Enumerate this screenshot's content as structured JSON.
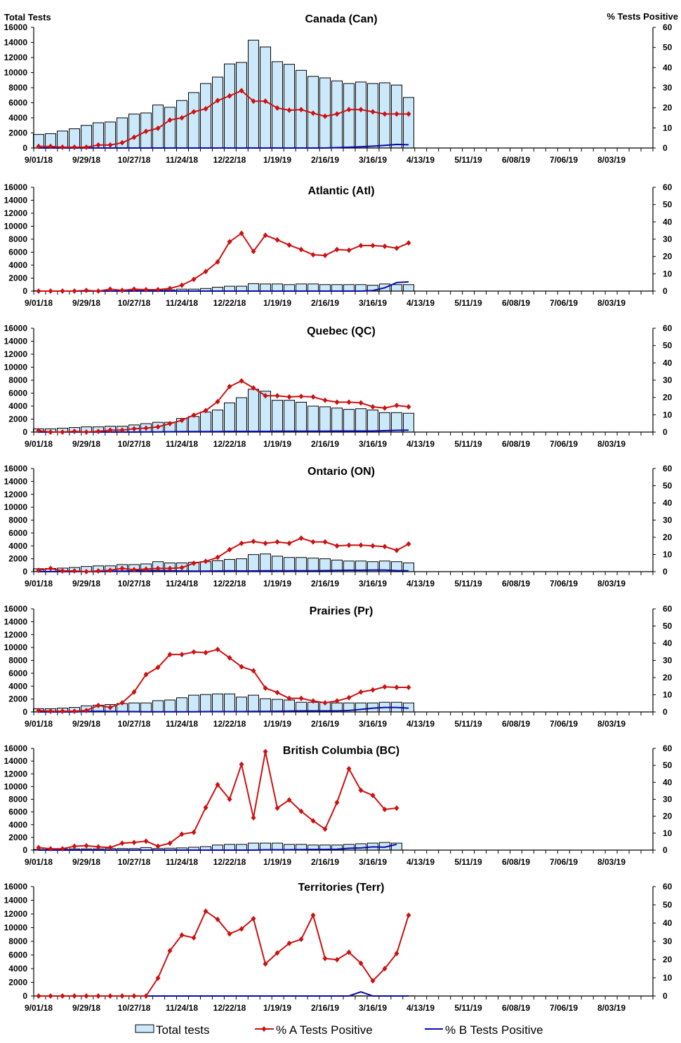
{
  "colors": {
    "bar_fill": "#cce9fb",
    "bar_stroke": "#000000",
    "series_a": "#cc1111",
    "series_b": "#0a0aa8"
  },
  "legend": {
    "position": "bottom",
    "items": [
      "Total tests",
      "% A Tests Positive",
      "% B Tests Positive"
    ]
  },
  "chart_data": [
    {
      "type": "bar+line",
      "title": "Canada (Can)",
      "ylabel": "Total Tests",
      "y2label": "% Tests Positive",
      "x_start": "9/01/18",
      "x_interval": "weekly",
      "xticks": [
        "9/01/18",
        "9/29/18",
        "10/27/18",
        "11/24/18",
        "12/22/18",
        "1/19/19",
        "2/16/19",
        "3/16/19",
        "4/13/19",
        "5/11/19",
        "6/08/19",
        "7/06/19",
        "8/03/19"
      ],
      "ylim": [
        0,
        16000
      ],
      "y2lim": [
        0,
        60
      ],
      "yticks": [
        0,
        2000,
        4000,
        6000,
        8000,
        10000,
        12000,
        14000,
        16000
      ],
      "y2ticks": [
        0,
        10,
        20,
        30,
        40,
        50,
        60
      ],
      "series": [
        {
          "name": "Total tests",
          "axis": "left",
          "type": "bar",
          "values": [
            1800,
            1900,
            2250,
            2550,
            3000,
            3350,
            3450,
            4000,
            4500,
            4650,
            5700,
            5400,
            6300,
            7350,
            8550,
            9400,
            11150,
            11350,
            14300,
            13400,
            11450,
            11100,
            10300,
            9500,
            9300,
            8900,
            8550,
            8750,
            8550,
            8650,
            8350,
            6700
          ]
        },
        {
          "name": "% A Tests Positive",
          "axis": "right",
          "type": "line",
          "values": [
            0.8,
            0.8,
            0.4,
            0.4,
            0.4,
            1.5,
            1.5,
            2.6,
            5.3,
            8.3,
            9.8,
            13.9,
            15,
            18,
            19.5,
            23.6,
            25.9,
            28.5,
            23.3,
            23.3,
            19.9,
            18.8,
            19.1,
            17.3,
            15.8,
            16.9,
            19.1,
            19.1,
            18,
            16.9,
            16.9,
            16.9
          ]
        },
        {
          "name": "% B Tests Positive",
          "axis": "right",
          "type": "line",
          "values": [
            0,
            0,
            0,
            0,
            0,
            0,
            0,
            0,
            0,
            0,
            0,
            0,
            0,
            0,
            0,
            0,
            0,
            0,
            0,
            0,
            0,
            0,
            0,
            0,
            0,
            0.2,
            0.4,
            0.6,
            0.9,
            1.3,
            1.8,
            1.6
          ]
        }
      ]
    },
    {
      "type": "bar+line",
      "title": "Atlantic (Atl)",
      "ylim": [
        0,
        16000
      ],
      "y2lim": [
        0,
        60
      ],
      "series": [
        {
          "name": "Total tests",
          "axis": "left",
          "type": "bar",
          "values": [
            50,
            50,
            50,
            50,
            50,
            50,
            50,
            80,
            100,
            100,
            150,
            200,
            300,
            300,
            400,
            600,
            750,
            750,
            1150,
            1100,
            1100,
            1000,
            1100,
            1100,
            1000,
            1000,
            1000,
            1000,
            900,
            1100,
            1000,
            1000
          ]
        },
        {
          "name": "% A Tests Positive",
          "axis": "right",
          "type": "line",
          "values": [
            0,
            0,
            0,
            0,
            0.4,
            0,
            1.1,
            0.4,
            1.1,
            0.8,
            0.8,
            1.5,
            3.4,
            6.8,
            11.3,
            16.9,
            28.5,
            33.4,
            22.9,
            32.3,
            29.6,
            26.6,
            24,
            21,
            20.6,
            24,
            23.6,
            26.3,
            26.3,
            25.9,
            24.8,
            27.8
          ]
        },
        {
          "name": "% B Tests Positive",
          "axis": "right",
          "type": "line",
          "values": [
            0,
            0,
            0,
            0,
            0,
            0,
            0,
            0,
            0,
            0,
            0,
            0,
            0,
            0,
            0,
            0,
            0,
            0,
            0,
            0,
            0,
            0,
            0,
            0,
            0,
            0,
            0,
            0,
            0.3,
            1.9,
            4.9,
            5.3
          ]
        }
      ]
    },
    {
      "type": "bar+line",
      "title": "Quebec (QC)",
      "ylim": [
        0,
        16000
      ],
      "y2lim": [
        0,
        60
      ],
      "series": [
        {
          "name": "Total tests",
          "axis": "left",
          "type": "bar",
          "values": [
            500,
            500,
            600,
            700,
            800,
            800,
            900,
            900,
            1100,
            1300,
            1500,
            1500,
            2100,
            2400,
            3100,
            3400,
            4500,
            5300,
            6600,
            6300,
            4900,
            4900,
            4600,
            4000,
            3900,
            3700,
            3500,
            3600,
            3400,
            3000,
            3000,
            2900
          ]
        },
        {
          "name": "% A Tests Positive",
          "axis": "right",
          "type": "line",
          "values": [
            0.8,
            0,
            0,
            0.4,
            0,
            0.4,
            1.1,
            1.1,
            1.9,
            2.3,
            3,
            4.9,
            6.8,
            9.8,
            12.4,
            17.6,
            26.3,
            29.6,
            25.5,
            21,
            21,
            20.3,
            20.6,
            20.3,
            18.4,
            17.3,
            17.3,
            16.9,
            14.6,
            13.9,
            15.4,
            14.6
          ]
        },
        {
          "name": "% B Tests Positive",
          "axis": "right",
          "type": "line",
          "values": [
            0,
            0,
            0,
            0,
            0,
            0,
            0,
            0,
            0,
            0.1,
            0.1,
            0.2,
            0.3,
            0.3,
            0.3,
            0.3,
            0.4,
            0.4,
            0.4,
            0.4,
            0.5,
            0.5,
            0.5,
            0.5,
            0.5,
            0.6,
            0.6,
            0.6,
            0.6,
            0.8,
            1,
            1.1
          ]
        }
      ]
    },
    {
      "type": "bar+line",
      "title": "Ontario (ON)",
      "ylim": [
        0,
        16000
      ],
      "y2lim": [
        0,
        60
      ],
      "series": [
        {
          "name": "Total tests",
          "axis": "left",
          "type": "bar",
          "values": [
            450,
            500,
            550,
            650,
            800,
            900,
            900,
            1100,
            1100,
            1200,
            1550,
            1350,
            1350,
            1450,
            1550,
            1700,
            1900,
            2000,
            2650,
            2750,
            2400,
            2200,
            2200,
            2100,
            2000,
            1800,
            1650,
            1650,
            1550,
            1650,
            1550,
            1350
          ]
        },
        {
          "name": "% A Tests Positive",
          "axis": "right",
          "type": "line",
          "values": [
            0.8,
            1.9,
            0.4,
            0.4,
            0,
            0.4,
            0.8,
            1.9,
            1.1,
            1.5,
            1.9,
            1.9,
            2.3,
            4.9,
            6,
            8.3,
            12.8,
            16.5,
            17.6,
            16.5,
            17.3,
            16.5,
            19.5,
            17.3,
            17.3,
            15,
            15.4,
            15.4,
            15,
            14.6,
            12.4,
            16.1
          ]
        },
        {
          "name": "% B Tests Positive",
          "axis": "right",
          "type": "line",
          "values": [
            0,
            0,
            0,
            0,
            0,
            0,
            0.2,
            0.3,
            0.4,
            0.5,
            0.6,
            0.5,
            0.4,
            0.3,
            0.3,
            0.4,
            0.5,
            0.4,
            0.4,
            0.5,
            0.5,
            0.5,
            0.5,
            0.5,
            0.6,
            0.7,
            0.8,
            0.8,
            0.9,
            0.9,
            0.6,
            0.5
          ]
        }
      ]
    },
    {
      "type": "bar+line",
      "title": "Prairies (Pr)",
      "ylim": [
        0,
        16000
      ],
      "y2lim": [
        0,
        60
      ],
      "series": [
        {
          "name": "Total tests",
          "axis": "left",
          "type": "bar",
          "values": [
            500,
            500,
            600,
            700,
            950,
            1050,
            1150,
            1300,
            1400,
            1400,
            1750,
            1850,
            2200,
            2600,
            2700,
            2800,
            2800,
            2300,
            2600,
            2050,
            1950,
            1850,
            1500,
            1500,
            1450,
            1400,
            1400,
            1400,
            1400,
            1500,
            1500,
            1400
          ]
        },
        {
          "name": "% A Tests Positive",
          "axis": "right",
          "type": "line",
          "values": [
            0.8,
            0.4,
            0.4,
            0.4,
            0.8,
            3.8,
            2.6,
            5.3,
            11.6,
            21.8,
            25.9,
            33.4,
            33.4,
            34.9,
            34.5,
            36.4,
            31.5,
            26.3,
            24,
            13.9,
            11.3,
            7.9,
            7.9,
            6.4,
            5.3,
            6.4,
            8.3,
            11.6,
            12.8,
            14.6,
            14.3,
            14.3
          ]
        },
        {
          "name": "% B Tests Positive",
          "axis": "right",
          "type": "line",
          "values": [
            0,
            0,
            0,
            0,
            0.3,
            0.4,
            0.3,
            0.2,
            0.2,
            0.1,
            0.1,
            0.1,
            0.1,
            0.1,
            0.2,
            0.2,
            0.2,
            0.2,
            0.3,
            0.3,
            0.4,
            0.5,
            0.6,
            0.6,
            0.6,
            0.6,
            0.8,
            1.5,
            2.2,
            2.6,
            2.6,
            2.2
          ]
        }
      ]
    },
    {
      "type": "bar+line",
      "title": "British Columbia (BC)",
      "ylim": [
        0,
        16000
      ],
      "y2lim": [
        0,
        60
      ],
      "series": [
        {
          "name": "Total tests",
          "axis": "left",
          "type": "bar",
          "values": [
            100,
            100,
            150,
            200,
            200,
            200,
            250,
            250,
            250,
            400,
            250,
            300,
            350,
            450,
            550,
            800,
            900,
            900,
            1100,
            1100,
            1100,
            900,
            900,
            800,
            800,
            800,
            900,
            1000,
            1100,
            1200,
            1100
          ]
        },
        {
          "name": "% A Tests Positive",
          "axis": "right",
          "type": "line",
          "values": [
            1.5,
            0.8,
            0.8,
            2.3,
            2.6,
            1.9,
            1.5,
            4.1,
            4.5,
            5.3,
            2.3,
            4.1,
            9.4,
            10.5,
            25.1,
            38.6,
            30,
            50.6,
            19.1,
            58.1,
            24.8,
            29.6,
            22.9,
            17.3,
            12.4,
            28.1,
            48,
            35.3,
            32.3,
            24,
            24.8
          ]
        },
        {
          "name": "% B Tests Positive",
          "axis": "right",
          "type": "line",
          "values": [
            0,
            0,
            0,
            0,
            0,
            0,
            0,
            0,
            0,
            0,
            0,
            0,
            0,
            0,
            0,
            0,
            0,
            0,
            0,
            0.2,
            0.2,
            0.2,
            0.3,
            0.4,
            0.4,
            0.5,
            1.1,
            1.3,
            1.9,
            1.7,
            3.4
          ]
        }
      ]
    },
    {
      "type": "bar+line",
      "title": "Territories (Terr)",
      "ylim": [
        0,
        16000
      ],
      "y2lim": [
        0,
        60
      ],
      "series": [
        {
          "name": "Total tests",
          "axis": "left",
          "type": "bar",
          "values": [
            5,
            5,
            5,
            5,
            5,
            5,
            5,
            5,
            5,
            5,
            10,
            20,
            20,
            20,
            20,
            20,
            20,
            20,
            20,
            20,
            20,
            20,
            20,
            20,
            20,
            20,
            20,
            20,
            20,
            20,
            20,
            20
          ]
        },
        {
          "name": "% A Tests Positive",
          "axis": "right",
          "type": "line",
          "values": [
            0,
            0,
            0,
            0,
            0,
            0,
            0,
            0,
            0,
            0,
            9.8,
            24.8,
            33.4,
            31.9,
            46.5,
            42,
            34.1,
            36.8,
            42.4,
            17.6,
            23.6,
            28.9,
            31.1,
            44.3,
            20.6,
            19.9,
            24,
            18,
            8.3,
            15,
            23.3,
            44.3
          ]
        },
        {
          "name": "% B Tests Positive",
          "axis": "right",
          "type": "line",
          "values": [
            0,
            0,
            0,
            0,
            0,
            0,
            0,
            0,
            0,
            0,
            0,
            0,
            0,
            0,
            0,
            0,
            0,
            0,
            0,
            0,
            0,
            0,
            0,
            0,
            0,
            0,
            0,
            2.3,
            0,
            0,
            0,
            0
          ]
        }
      ]
    }
  ]
}
